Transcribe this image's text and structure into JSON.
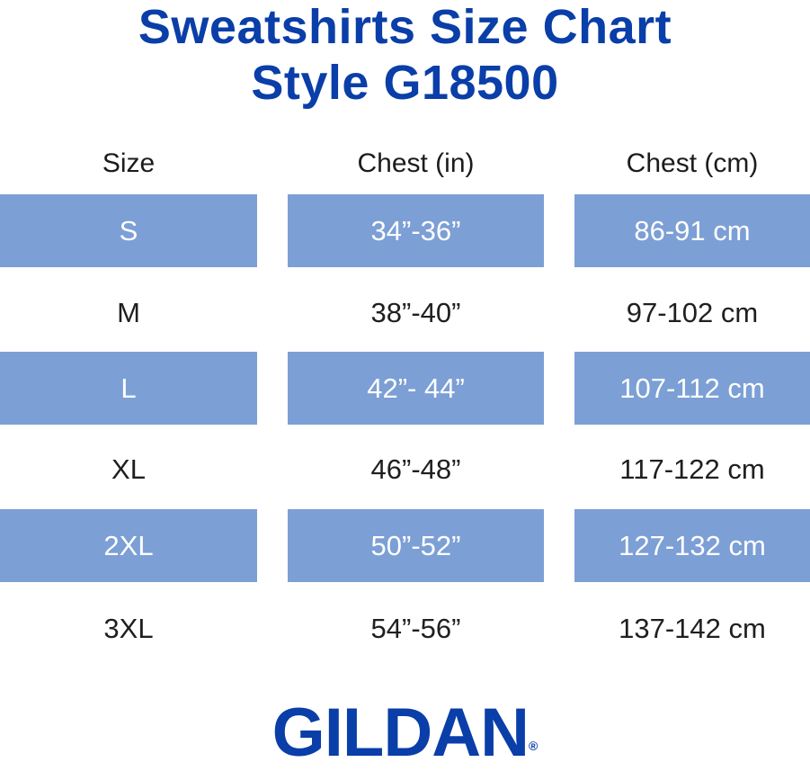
{
  "title": {
    "line1": "Sweatshirts Size Chart",
    "line2": "Style G18500"
  },
  "headers": [
    "Size",
    "Chest (in)",
    "Chest (cm)"
  ],
  "rows": [
    {
      "size": "S",
      "chest_in": "34”-36”",
      "chest_cm": "86-91 cm",
      "shaded": true
    },
    {
      "size": "M",
      "chest_in": "38”-40”",
      "chest_cm": "97-102 cm",
      "shaded": false
    },
    {
      "size": "L",
      "chest_in": "42”- 44”",
      "chest_cm": "107-112 cm",
      "shaded": true
    },
    {
      "size": "XL",
      "chest_in": "46”-48”",
      "chest_cm": "117-122 cm",
      "shaded": false
    },
    {
      "size": "2XL",
      "chest_in": "50”-52”",
      "chest_cm": "127-132 cm",
      "shaded": true
    },
    {
      "size": "3XL",
      "chest_in": "54”-56”",
      "chest_cm": "137-142 cm",
      "shaded": false
    }
  ],
  "logo": {
    "text": "GILDAN",
    "mark": "®"
  },
  "colors": {
    "brand_blue": "#0a3ea8",
    "row_shade": "#7c9fd5",
    "text": "#1f1f1f"
  }
}
